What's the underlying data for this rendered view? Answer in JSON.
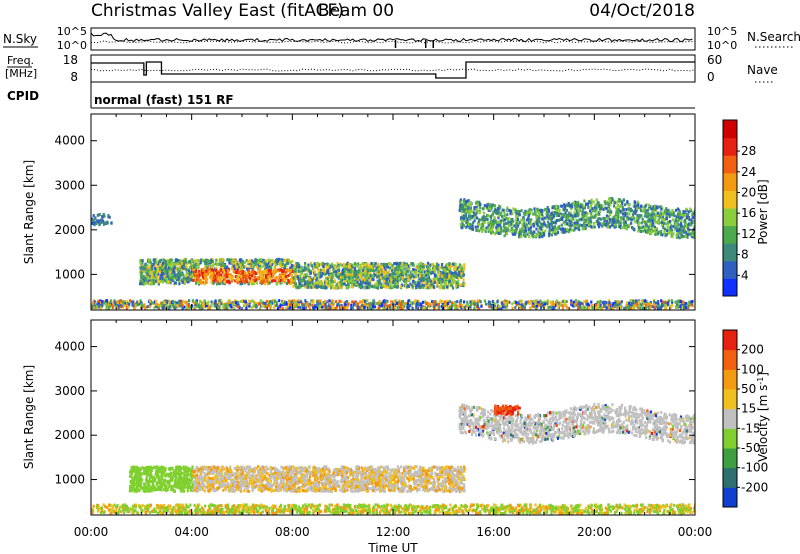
{
  "header": {
    "title": "Christmas Valley East (fitACF)",
    "beam": "Beam 00",
    "date": "04/Oct/2018"
  },
  "status_panel": {
    "nsky_label": "N.Sky",
    "nsky_ticks": [
      "10^5",
      "10^0"
    ],
    "nsearch_label": "N.Search",
    "nsearch_ticks": [
      "10^5",
      "10^0"
    ],
    "freq_label_1": "Freq.",
    "freq_label_2": "[MHz]",
    "freq_ticks": [
      "18",
      "8"
    ],
    "nave_label": "Nave",
    "nave_ticks": [
      "60",
      "0"
    ],
    "cpid_label": "CPID",
    "cpid_text": "normal (fast) 151 RF"
  },
  "chart_data": [
    {
      "type": "heatmap",
      "title": "",
      "xlabel": "Time UT",
      "ylabel": "Slant Range [km]",
      "x_ticks": [
        "00:00",
        "04:00",
        "08:00",
        "12:00",
        "16:00",
        "20:00",
        "00:00"
      ],
      "y_ticks": [
        1000,
        2000,
        3000,
        4000
      ],
      "xlim": [
        0,
        24
      ],
      "ylim": [
        200,
        4600
      ],
      "colorbar": {
        "label": "Power [dB]",
        "ticks": [
          "4",
          "8",
          "12",
          "16",
          "20",
          "24",
          "28"
        ],
        "colors": [
          "#1030ff",
          "#2f5fc0",
          "#3d8a7a",
          "#4caa4c",
          "#8ccd3c",
          "#f0c020",
          "#f39a10",
          "#f06010",
          "#e82010",
          "#d00000"
        ]
      },
      "regions": [
        {
          "t": [
            1.9,
            14.8
          ],
          "r": [
            700,
            1300
          ],
          "level": "high"
        },
        {
          "t": [
            0.0,
            24.0
          ],
          "r": [
            200,
            400
          ],
          "level": "low"
        },
        {
          "t": [
            14.5,
            24.0
          ],
          "r": [
            1600,
            2800
          ],
          "level": "medium"
        },
        {
          "t": [
            0.0,
            0.8
          ],
          "r": [
            2050,
            2300
          ],
          "level": "low"
        }
      ]
    },
    {
      "type": "heatmap",
      "title": "",
      "xlabel": "Time UT",
      "ylabel": "Slant Range [km]",
      "x_ticks": [
        "00:00",
        "04:00",
        "08:00",
        "12:00",
        "16:00",
        "20:00",
        "00:00"
      ],
      "y_ticks": [
        1000,
        2000,
        3000,
        4000
      ],
      "xlim": [
        0,
        24
      ],
      "ylim": [
        200,
        4600
      ],
      "colorbar": {
        "label": "Velocity [m s",
        "label_sup": "-1",
        "label_end": "]",
        "ticks": [
          "200",
          "100",
          "50",
          "15",
          "-15",
          "-50",
          "-100",
          "-200"
        ],
        "colors": [
          "#1040d0",
          "#2e6f6f",
          "#3f9e3f",
          "#7fd02f",
          "#c0c0c0",
          "#f0c020",
          "#f39a10",
          "#f06010",
          "#e82010"
        ]
      },
      "regions": [
        {
          "t": [
            1.5,
            4.0
          ],
          "r": [
            700,
            1300
          ],
          "level": "green"
        },
        {
          "t": [
            4.0,
            14.8
          ],
          "r": [
            700,
            1300
          ],
          "level": "grey-orange"
        },
        {
          "t": [
            0.0,
            24.0
          ],
          "r": [
            200,
            450
          ],
          "level": "green-orange"
        },
        {
          "t": [
            14.5,
            24.0
          ],
          "r": [
            1600,
            2800
          ],
          "level": "grey"
        },
        {
          "t": [
            16.0,
            17.0
          ],
          "r": [
            2400,
            2650
          ],
          "level": "red"
        }
      ]
    }
  ]
}
